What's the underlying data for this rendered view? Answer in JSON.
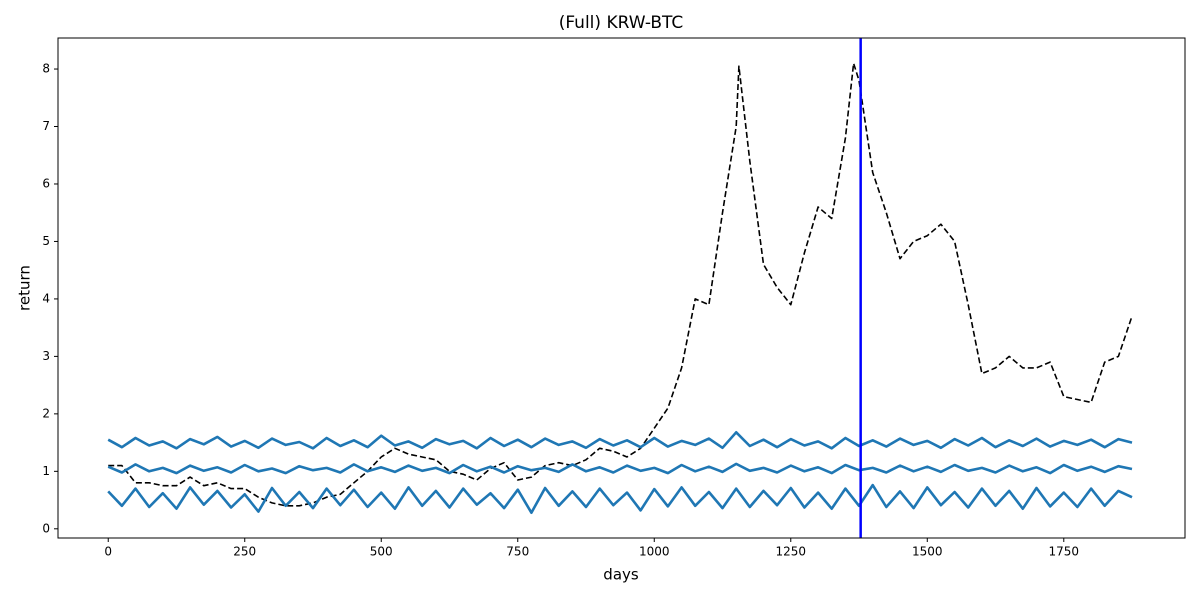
{
  "chart_data": {
    "type": "line",
    "title": "(Full) KRW-BTC",
    "x_label": "days",
    "y_label": "return",
    "xlim": [
      -92,
      1972
    ],
    "ylim": [
      -0.16,
      8.54
    ],
    "xticks": [
      0,
      250,
      500,
      750,
      1000,
      1250,
      1500,
      1750
    ],
    "yticks": [
      0,
      1,
      2,
      3,
      4,
      5,
      6,
      7,
      8
    ],
    "x": [
      0,
      25,
      50,
      75,
      100,
      125,
      150,
      175,
      200,
      225,
      250,
      275,
      300,
      325,
      350,
      375,
      400,
      425,
      450,
      475,
      500,
      525,
      550,
      575,
      600,
      625,
      650,
      675,
      700,
      725,
      750,
      775,
      800,
      825,
      850,
      875,
      900,
      925,
      950,
      975,
      1000,
      1025,
      1050,
      1075,
      1100,
      1125,
      1150,
      1175,
      1200,
      1225,
      1250,
      1275,
      1300,
      1325,
      1350,
      1375,
      1400,
      1425,
      1450,
      1475,
      1500,
      1525,
      1550,
      1575,
      1600,
      1625,
      1650,
      1675,
      1700,
      1725,
      1750,
      1775,
      1800,
      1825,
      1850,
      1875
    ],
    "series": [
      {
        "color": "#000000",
        "linestyle": "dashed",
        "x": [
          0,
          25,
          50,
          75,
          100,
          125,
          150,
          175,
          200,
          225,
          250,
          275,
          300,
          325,
          350,
          375,
          400,
          425,
          450,
          475,
          500,
          525,
          550,
          575,
          600,
          625,
          650,
          675,
          700,
          725,
          750,
          775,
          800,
          825,
          850,
          875,
          900,
          925,
          950,
          975,
          1000,
          1025,
          1050,
          1075,
          1100,
          1125,
          1150,
          1155,
          1175,
          1200,
          1225,
          1250,
          1275,
          1300,
          1325,
          1350,
          1365,
          1375,
          1400,
          1425,
          1450,
          1475,
          1500,
          1525,
          1550,
          1575,
          1600,
          1625,
          1650,
          1675,
          1700,
          1725,
          1750,
          1775,
          1800,
          1825,
          1850,
          1875
        ],
        "values": [
          1.1,
          1.1,
          0.8,
          0.8,
          0.75,
          0.75,
          0.9,
          0.75,
          0.8,
          0.7,
          0.7,
          0.55,
          0.45,
          0.4,
          0.4,
          0.45,
          0.55,
          0.6,
          0.8,
          1.0,
          1.25,
          1.4,
          1.3,
          1.25,
          1.2,
          1.0,
          0.95,
          0.85,
          1.05,
          1.15,
          0.85,
          0.9,
          1.1,
          1.15,
          1.1,
          1.2,
          1.4,
          1.35,
          1.25,
          1.4,
          1.75,
          2.1,
          2.8,
          4.0,
          3.9,
          5.5,
          7.0,
          8.05,
          6.4,
          4.6,
          4.2,
          3.9,
          4.8,
          5.6,
          5.4,
          6.8,
          8.1,
          7.8,
          6.2,
          5.5,
          4.7,
          5.0,
          5.1,
          5.3,
          5.0,
          3.9,
          2.7,
          2.8,
          3.0,
          2.8,
          2.8,
          2.9,
          2.3,
          2.25,
          2.2,
          2.9,
          3.0,
          3.7
        ]
      },
      {
        "color": "#1f77b4",
        "linestyle": "solid",
        "values": [
          1.55,
          1.42,
          1.58,
          1.45,
          1.52,
          1.4,
          1.56,
          1.47,
          1.6,
          1.43,
          1.53,
          1.41,
          1.57,
          1.46,
          1.51,
          1.4,
          1.58,
          1.44,
          1.54,
          1.42,
          1.62,
          1.45,
          1.52,
          1.41,
          1.56,
          1.47,
          1.53,
          1.4,
          1.58,
          1.44,
          1.55,
          1.42,
          1.57,
          1.46,
          1.52,
          1.41,
          1.56,
          1.45,
          1.54,
          1.42,
          1.58,
          1.43,
          1.53,
          1.46,
          1.57,
          1.41,
          1.68,
          1.44,
          1.55,
          1.42,
          1.56,
          1.45,
          1.52,
          1.4,
          1.58,
          1.44,
          1.54,
          1.43,
          1.57,
          1.46,
          1.53,
          1.41,
          1.56,
          1.45,
          1.58,
          1.42,
          1.54,
          1.44,
          1.57,
          1.43,
          1.53,
          1.46,
          1.55,
          1.42,
          1.56,
          1.5
        ]
      },
      {
        "color": "#1f77b4",
        "linestyle": "solid",
        "values": [
          1.08,
          0.98,
          1.12,
          1.0,
          1.06,
          0.97,
          1.1,
          1.01,
          1.07,
          0.98,
          1.11,
          1.0,
          1.05,
          0.97,
          1.09,
          1.02,
          1.06,
          0.98,
          1.12,
          1.0,
          1.07,
          0.99,
          1.1,
          1.01,
          1.06,
          0.97,
          1.11,
          1.0,
          1.08,
          0.98,
          1.09,
          1.02,
          1.06,
          0.99,
          1.12,
          1.0,
          1.07,
          0.98,
          1.1,
          1.01,
          1.06,
          0.97,
          1.11,
          1.0,
          1.08,
          0.99,
          1.13,
          1.01,
          1.06,
          0.98,
          1.1,
          1.0,
          1.07,
          0.97,
          1.11,
          1.02,
          1.06,
          0.98,
          1.1,
          1.0,
          1.08,
          0.99,
          1.11,
          1.01,
          1.06,
          0.98,
          1.1,
          1.0,
          1.07,
          0.97,
          1.11,
          1.01,
          1.08,
          0.99,
          1.09,
          1.04
        ]
      },
      {
        "color": "#1f77b4",
        "linestyle": "solid",
        "values": [
          0.65,
          0.4,
          0.7,
          0.38,
          0.62,
          0.35,
          0.72,
          0.42,
          0.66,
          0.37,
          0.6,
          0.3,
          0.71,
          0.4,
          0.64,
          0.36,
          0.7,
          0.41,
          0.68,
          0.38,
          0.63,
          0.35,
          0.72,
          0.4,
          0.66,
          0.37,
          0.7,
          0.42,
          0.62,
          0.36,
          0.68,
          0.28,
          0.71,
          0.4,
          0.65,
          0.38,
          0.7,
          0.41,
          0.63,
          0.32,
          0.69,
          0.39,
          0.72,
          0.4,
          0.64,
          0.36,
          0.7,
          0.38,
          0.66,
          0.41,
          0.71,
          0.37,
          0.63,
          0.35,
          0.7,
          0.4,
          0.76,
          0.38,
          0.65,
          0.36,
          0.72,
          0.41,
          0.64,
          0.37,
          0.7,
          0.4,
          0.66,
          0.35,
          0.71,
          0.39,
          0.63,
          0.38,
          0.7,
          0.4,
          0.66,
          0.55
        ]
      }
    ],
    "vline": {
      "x": 1378,
      "color": "#0000ff"
    }
  }
}
